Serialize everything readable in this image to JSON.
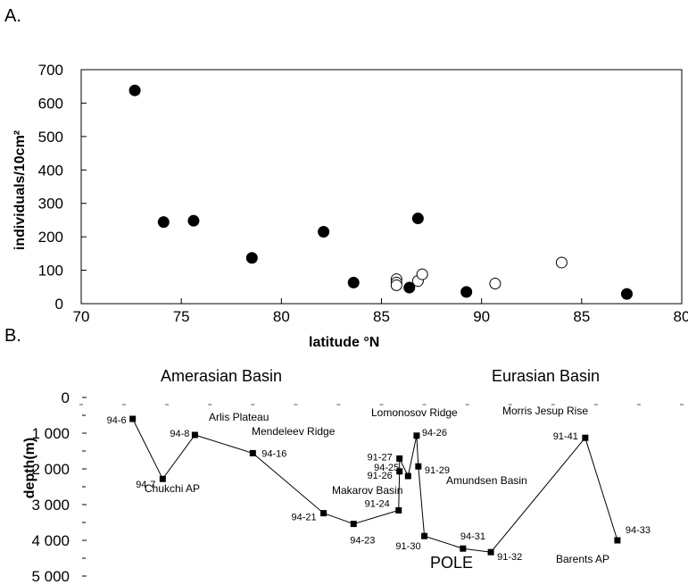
{
  "chart_data": [
    {
      "type": "scatter",
      "panel_label": "A.",
      "xlabel": "latitude °N",
      "ylabel": "individuals/10cm²",
      "xlim": [
        0,
        14
      ],
      "ylim": [
        0,
        700
      ],
      "x_tick_labels": [
        "70",
        "75",
        "80",
        "85",
        "90",
        "85",
        "80"
      ],
      "y_ticks": [
        0,
        100,
        200,
        300,
        400,
        500,
        600,
        700
      ],
      "grid": false,
      "series": [
        {
          "marker": "filled-circle",
          "points": [
            {
              "x": 1.25,
              "y": 638
            },
            {
              "x": 1.92,
              "y": 244
            },
            {
              "x": 2.62,
              "y": 248
            },
            {
              "x": 3.98,
              "y": 137
            },
            {
              "x": 5.65,
              "y": 215
            },
            {
              "x": 6.35,
              "y": 63
            },
            {
              "x": 7.65,
              "y": 48
            },
            {
              "x": 7.85,
              "y": 255
            },
            {
              "x": 8.98,
              "y": 35
            },
            {
              "x": 12.72,
              "y": 29
            }
          ]
        },
        {
          "marker": "open-circle",
          "points": [
            {
              "x": 7.35,
              "y": 73
            },
            {
              "x": 7.35,
              "y": 63
            },
            {
              "x": 7.35,
              "y": 55
            },
            {
              "x": 7.85,
              "y": 68
            },
            {
              "x": 7.95,
              "y": 88
            },
            {
              "x": 9.65,
              "y": 60
            },
            {
              "x": 11.2,
              "y": 123
            }
          ]
        }
      ]
    },
    {
      "type": "line",
      "panel_label": "B.",
      "ylabel": "depth(m)",
      "ylim": [
        0,
        5000
      ],
      "y_ticks": [
        0,
        1000,
        2000,
        3000,
        4000,
        5000
      ],
      "y_tick_labels": [
        "0",
        "1 000",
        "2 000",
        "3 000",
        "4 000",
        "5 000"
      ],
      "xlim": [
        0,
        14
      ],
      "regions": [
        "Amerasian Basin",
        "Eurasian Basin"
      ],
      "pole_label": "POLE",
      "series": [
        {
          "marker": "filled-square",
          "points": [
            {
              "label": "94-6",
              "x": 1.2,
              "y": 600
            },
            {
              "label": "94-7",
              "x": 1.9,
              "y": 2280
            },
            {
              "label": "94-8",
              "x": 2.65,
              "y": 1050
            },
            {
              "label": "94-16",
              "x": 4.0,
              "y": 1560
            },
            {
              "label": "94-21",
              "x": 5.65,
              "y": 3240
            },
            {
              "label": "94-23",
              "x": 6.35,
              "y": 3540
            },
            {
              "label": "91-24",
              "x": 7.4,
              "y": 3160
            },
            {
              "label": "91-26",
              "x": 7.42,
              "y": 2070
            },
            {
              "label": "91-27",
              "x": 7.42,
              "y": 1710
            },
            {
              "label": "94-25",
              "x": 7.62,
              "y": 2200
            },
            {
              "label": "94-26",
              "x": 7.82,
              "y": 1070
            },
            {
              "label": "91-29",
              "x": 7.86,
              "y": 1930
            },
            {
              "label": "91-30",
              "x": 8.0,
              "y": 3880
            },
            {
              "label": "94-31",
              "x": 8.9,
              "y": 4230
            },
            {
              "label": "91-32",
              "x": 9.55,
              "y": 4330
            },
            {
              "label": "91-41",
              "x": 11.75,
              "y": 1130
            },
            {
              "label": "94-33",
              "x": 12.5,
              "y": 4000
            }
          ]
        }
      ],
      "annotations": [
        "Arlis Plateau",
        "Mendeleev Ridge",
        "Chukchi AP",
        "Lomonosov Ridge",
        "Morris Jesup Rise",
        "Makarov Basin",
        "Amundsen Basin",
        "Barents AP"
      ]
    }
  ]
}
